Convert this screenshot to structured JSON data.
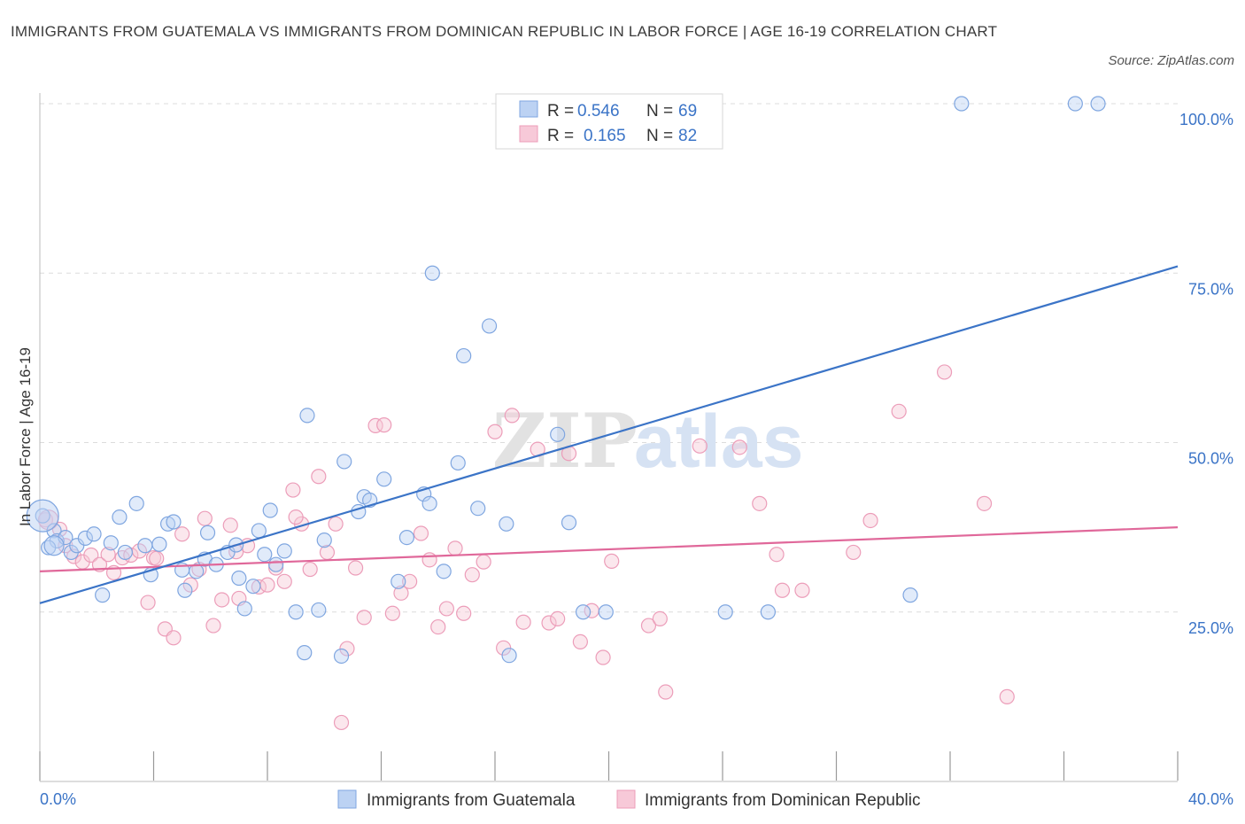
{
  "title": "IMMIGRANTS FROM GUATEMALA VS IMMIGRANTS FROM DOMINICAN REPUBLIC IN LABOR FORCE | AGE 16-19 CORRELATION CHART",
  "source": "Source: ZipAtlas.com",
  "watermark": {
    "zip": "ZIP",
    "atlas": "atlas"
  },
  "legend": {
    "rows": [
      {
        "r_label": "R =",
        "r_value": "0.546",
        "n_label": "N =",
        "n_value": "69"
      },
      {
        "r_label": "R =",
        "r_value": "0.165",
        "n_label": "N =",
        "n_value": "82"
      }
    ]
  },
  "chart_data": {
    "type": "scatter",
    "ylabel": "In Labor Force | Age 16-19",
    "xlim": [
      0,
      40
    ],
    "ylim": [
      0,
      100
    ],
    "x_tick_labels": [
      "0.0%",
      "40.0%"
    ],
    "y_tick_labels": [
      "25.0%",
      "50.0%",
      "75.0%",
      "100.0%"
    ],
    "y_tick_values": [
      25,
      50,
      75,
      100
    ],
    "colors": {
      "guatemala": "#6f9fe0",
      "dominican": "#ef8fb0",
      "guatemala_line": "#3b74c7",
      "dominican_line": "#e0689a"
    },
    "series": [
      {
        "name": "Immigrants from Guatemala",
        "trend": {
          "x0": 0,
          "y0": 26.3,
          "x1": 40,
          "y1": 76
        },
        "points": [
          [
            0.1,
            39.2
          ],
          [
            0.5,
            37.0
          ],
          [
            0.6,
            35.5
          ],
          [
            0.9,
            36.0
          ],
          [
            1.1,
            33.8
          ],
          [
            1.3,
            34.8
          ],
          [
            1.6,
            35.9
          ],
          [
            0.3,
            34.5
          ],
          [
            1.9,
            36.5
          ],
          [
            2.2,
            27.5
          ],
          [
            2.5,
            35.2
          ],
          [
            2.8,
            39.0
          ],
          [
            3.0,
            33.8
          ],
          [
            3.4,
            41.0
          ],
          [
            3.7,
            34.8
          ],
          [
            3.9,
            30.5
          ],
          [
            4.2,
            35.0
          ],
          [
            4.5,
            38.0
          ],
          [
            4.7,
            38.3
          ],
          [
            5.0,
            31.2
          ],
          [
            5.1,
            28.2
          ],
          [
            5.5,
            31.0
          ],
          [
            5.9,
            36.7
          ],
          [
            5.8,
            32.8
          ],
          [
            6.2,
            32.0
          ],
          [
            6.6,
            33.8
          ],
          [
            6.9,
            34.9
          ],
          [
            7.0,
            30.0
          ],
          [
            7.2,
            25.5
          ],
          [
            7.5,
            28.8
          ],
          [
            7.7,
            37.0
          ],
          [
            7.9,
            33.5
          ],
          [
            8.1,
            40.0
          ],
          [
            8.3,
            32.0
          ],
          [
            8.6,
            34.0
          ],
          [
            9.0,
            25.0
          ],
          [
            9.3,
            19.0
          ],
          [
            9.4,
            54.0
          ],
          [
            9.8,
            25.3
          ],
          [
            10.0,
            35.6
          ],
          [
            10.6,
            18.5
          ],
          [
            10.7,
            47.2
          ],
          [
            11.2,
            39.8
          ],
          [
            11.4,
            42.0
          ],
          [
            11.6,
            41.5
          ],
          [
            12.1,
            44.6
          ],
          [
            12.6,
            29.5
          ],
          [
            12.9,
            36.0
          ],
          [
            13.5,
            42.4
          ],
          [
            13.7,
            41.0
          ],
          [
            14.2,
            31.0
          ],
          [
            14.7,
            47.0
          ],
          [
            14.9,
            62.8
          ],
          [
            15.4,
            40.3
          ],
          [
            15.8,
            67.2
          ],
          [
            16.5,
            18.6
          ],
          [
            16.4,
            38.0
          ],
          [
            18.2,
            51.2
          ],
          [
            18.6,
            38.2
          ],
          [
            19.1,
            25.0
          ],
          [
            19.9,
            25.0
          ],
          [
            24.1,
            25.0
          ],
          [
            25.6,
            25.0
          ],
          [
            30.6,
            27.5
          ],
          [
            13.8,
            75.0
          ],
          [
            32.4,
            100
          ],
          [
            36.4,
            100
          ],
          [
            37.2,
            100
          ],
          [
            20.4,
            100
          ]
        ]
      },
      {
        "name": "Immigrants from Dominican Republic",
        "trend": {
          "x0": 0,
          "y0": 31.0,
          "x1": 40,
          "y1": 37.5
        },
        "points": [
          [
            0.2,
            38.6
          ],
          [
            0.7,
            37.2
          ],
          [
            0.9,
            34.8
          ],
          [
            1.2,
            33.2
          ],
          [
            1.5,
            32.4
          ],
          [
            1.8,
            33.4
          ],
          [
            2.1,
            32.0
          ],
          [
            2.4,
            33.5
          ],
          [
            2.6,
            30.8
          ],
          [
            2.9,
            33.0
          ],
          [
            3.2,
            33.4
          ],
          [
            3.5,
            34.0
          ],
          [
            3.8,
            26.4
          ],
          [
            4.0,
            33.0
          ],
          [
            4.4,
            22.5
          ],
          [
            4.7,
            21.2
          ],
          [
            5.0,
            36.5
          ],
          [
            5.3,
            29.0
          ],
          [
            5.6,
            31.3
          ],
          [
            5.8,
            38.8
          ],
          [
            6.1,
            23.0
          ],
          [
            6.4,
            26.8
          ],
          [
            6.7,
            37.8
          ],
          [
            7.0,
            27.0
          ],
          [
            7.3,
            34.8
          ],
          [
            7.7,
            28.7
          ],
          [
            8.0,
            29.0
          ],
          [
            8.3,
            31.5
          ],
          [
            8.6,
            29.5
          ],
          [
            8.9,
            43.0
          ],
          [
            9.2,
            38.0
          ],
          [
            9.5,
            31.3
          ],
          [
            9.8,
            45.0
          ],
          [
            10.1,
            33.8
          ],
          [
            10.4,
            38.0
          ],
          [
            10.8,
            19.6
          ],
          [
            11.1,
            31.5
          ],
          [
            11.4,
            24.2
          ],
          [
            11.8,
            52.5
          ],
          [
            12.1,
            52.6
          ],
          [
            12.4,
            24.8
          ],
          [
            12.7,
            27.8
          ],
          [
            13.0,
            29.5
          ],
          [
            13.4,
            36.6
          ],
          [
            13.7,
            32.7
          ],
          [
            14.0,
            22.8
          ],
          [
            14.3,
            25.5
          ],
          [
            14.6,
            34.4
          ],
          [
            14.9,
            24.8
          ],
          [
            15.2,
            30.5
          ],
          [
            15.6,
            32.4
          ],
          [
            16.0,
            51.6
          ],
          [
            16.3,
            19.7
          ],
          [
            16.6,
            54.0
          ],
          [
            17.0,
            23.5
          ],
          [
            17.5,
            49.0
          ],
          [
            17.9,
            23.4
          ],
          [
            18.2,
            24.0
          ],
          [
            18.6,
            48.4
          ],
          [
            19.0,
            20.6
          ],
          [
            19.4,
            25.2
          ],
          [
            19.8,
            18.3
          ],
          [
            20.1,
            32.5
          ],
          [
            21.4,
            23.0
          ],
          [
            21.8,
            24.0
          ],
          [
            22.0,
            13.2
          ],
          [
            23.2,
            49.5
          ],
          [
            24.6,
            49.3
          ],
          [
            25.3,
            41.0
          ],
          [
            25.9,
            33.5
          ],
          [
            26.1,
            28.2
          ],
          [
            26.8,
            28.2
          ],
          [
            28.6,
            33.8
          ],
          [
            29.2,
            38.5
          ],
          [
            30.2,
            54.6
          ],
          [
            31.8,
            60.4
          ],
          [
            33.2,
            41.0
          ],
          [
            34.0,
            12.5
          ],
          [
            10.6,
            8.7
          ],
          [
            9.0,
            39.0
          ],
          [
            6.9,
            33.9
          ],
          [
            4.1,
            32.9
          ]
        ]
      }
    ]
  },
  "bottom_legend": {
    "items": [
      {
        "label": "Immigrants from Guatemala"
      },
      {
        "label": "Immigrants from Dominican Republic"
      }
    ]
  }
}
